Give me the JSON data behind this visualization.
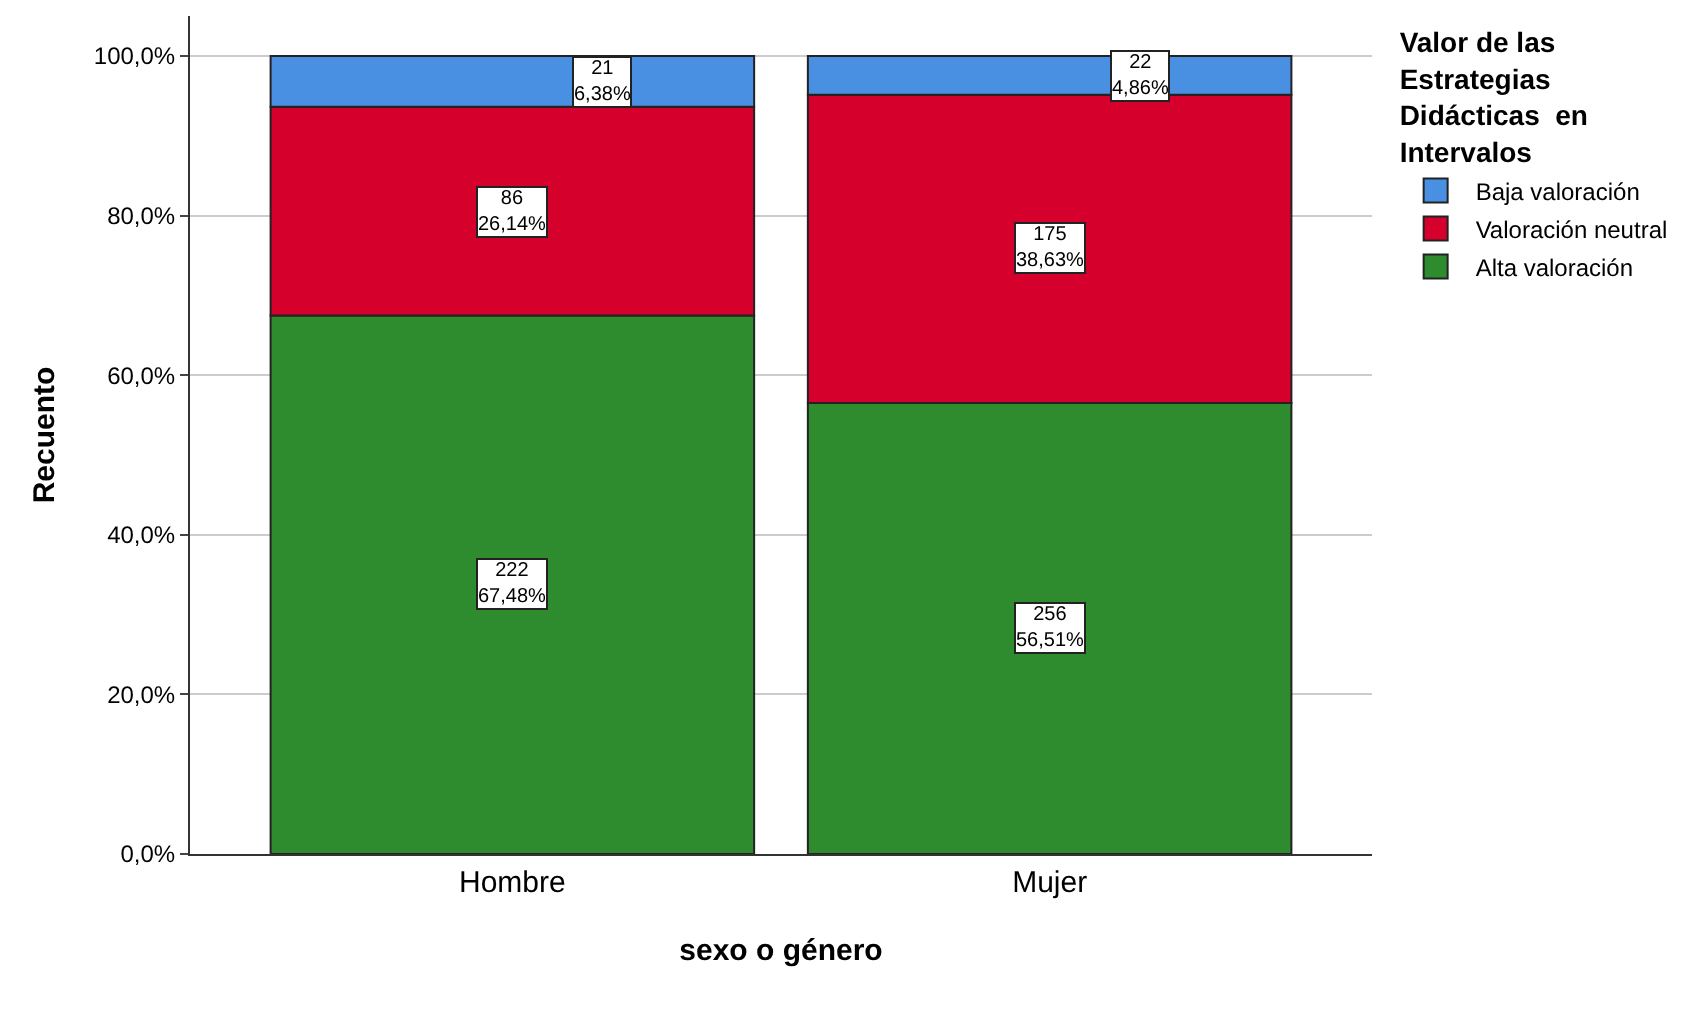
{
  "chart_data": {
    "type": "bar",
    "stacked": true,
    "xlabel": "sexo o género",
    "ylabel": "Recuento",
    "legend_title": "Valor de las Estrategias Didácticas  en Intervalos",
    "categories": [
      "Hombre",
      "Mujer"
    ],
    "series": [
      {
        "name": "Alta valoración",
        "color": "#2e8b2e",
        "values": [
          67.48,
          56.51
        ],
        "value_labels": [
          "222\n67,48%",
          "256\n56,51%"
        ]
      },
      {
        "name": "Valoración neutral",
        "color": "#d5002c",
        "values": [
          26.14,
          38.63
        ],
        "value_labels": [
          "86\n26,14%",
          "175\n38,63%"
        ]
      },
      {
        "name": "Baja valoración",
        "color": "#4a90e2",
        "values": [
          6.38,
          4.86
        ],
        "value_labels": [
          "21\n6,38%",
          "22\n4,86%"
        ]
      }
    ],
    "ylim": [
      0,
      105
    ],
    "yticks": [
      {
        "value": 0,
        "label": "0,0%"
      },
      {
        "value": 20,
        "label": "20,0%"
      },
      {
        "value": 40,
        "label": "40,0%"
      },
      {
        "value": 60,
        "label": "60,0%"
      },
      {
        "value": 80,
        "label": "80,0%"
      },
      {
        "value": 100,
        "label": "100,0%"
      }
    ],
    "grid": "y",
    "legend": "top right"
  }
}
